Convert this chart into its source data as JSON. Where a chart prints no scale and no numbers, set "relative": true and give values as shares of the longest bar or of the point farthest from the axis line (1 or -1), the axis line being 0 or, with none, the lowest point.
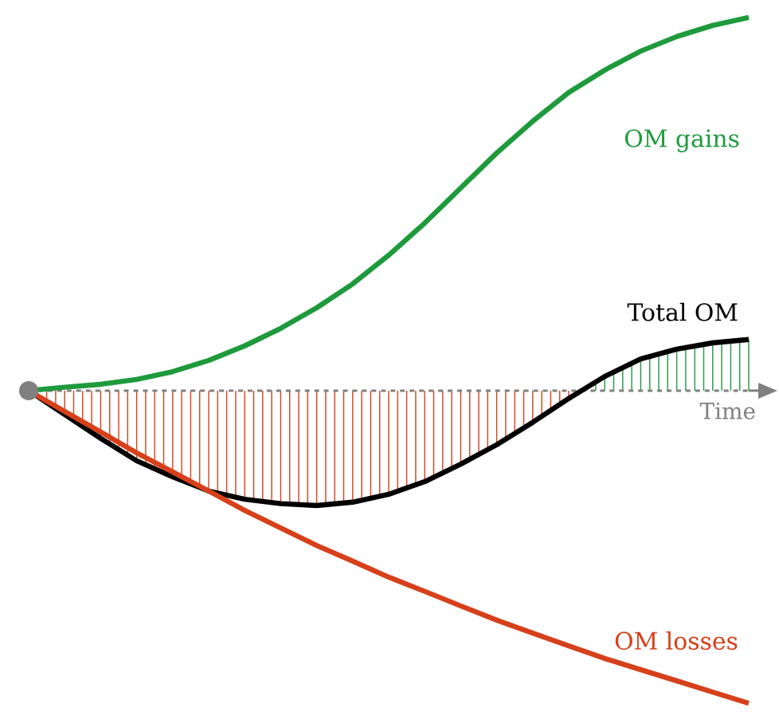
{
  "chart_data": {
    "type": "line",
    "relative": true,
    "xlabel": "Time",
    "marker": "none",
    "legend": false,
    "categories": [
      null,
      null,
      null,
      null,
      null,
      null,
      null,
      null,
      null,
      null,
      null,
      null,
      null,
      null,
      null,
      null,
      null,
      null,
      null,
      null,
      null
    ],
    "ref_lines": [
      {
        "axis": "y",
        "value": 0,
        "color": "#808080",
        "line_style": "dashed"
      }
    ],
    "series": [
      {
        "name": "OM gains",
        "color": "#1e9a3c",
        "values": [
          0,
          0.009,
          0.017,
          0.03,
          0.051,
          0.081,
          0.12,
          0.167,
          0.222,
          0.286,
          0.363,
          0.449,
          0.543,
          0.637,
          0.722,
          0.799,
          0.859,
          0.91,
          0.949,
          0.979,
          1
        ]
      },
      {
        "name": "Total OM",
        "color": "#000000",
        "values": [
          0,
          -0.064,
          -0.128,
          -0.188,
          -0.231,
          -0.269,
          -0.291,
          -0.303,
          -0.308,
          -0.299,
          -0.278,
          -0.244,
          -0.197,
          -0.145,
          -0.085,
          -0.021,
          0.038,
          0.085,
          0.111,
          0.128,
          0.137
        ]
      },
      {
        "name": "OM losses",
        "color": "#d6401a",
        "values": [
          0,
          -0.056,
          -0.111,
          -0.167,
          -0.218,
          -0.269,
          -0.321,
          -0.368,
          -0.415,
          -0.457,
          -0.5,
          -0.538,
          -0.577,
          -0.615,
          -0.65,
          -0.684,
          -0.718,
          -0.748,
          -0.778,
          -0.808,
          -0.838
        ]
      }
    ]
  }
}
